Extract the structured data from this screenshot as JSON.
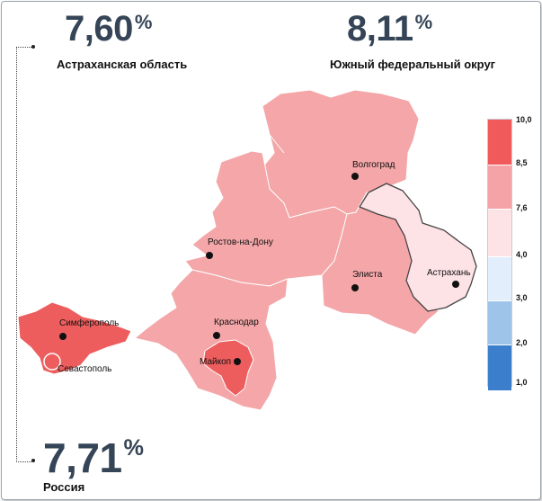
{
  "stats": {
    "region": {
      "value": "7,60",
      "unit": "%",
      "label": "Астраханская область"
    },
    "district": {
      "value": "8,11",
      "unit": "%",
      "label": "Южный федеральный округ"
    },
    "country": {
      "value": "7,71",
      "unit": "%",
      "label": "Россия"
    }
  },
  "cities": {
    "volgograd": "Волгоград",
    "rostov": "Ростов-на-Дону",
    "elista": "Элиста",
    "astrakhan": "Астрахань",
    "simferopol": "Симферополь",
    "sevastopol": "Севастополь",
    "krasnodar": "Краснодар",
    "maykop": "Майкоп"
  },
  "legend": {
    "ticks": [
      "10,0",
      "8,5",
      "7,6",
      "4,0",
      "3,0",
      "2,0",
      "1,0"
    ],
    "colors": [
      "#f05a5a",
      "#f5a3a6",
      "#fde3e6",
      "#e2eefb",
      "#9ec4ea",
      "#3b7fcc"
    ]
  },
  "colors": {
    "region_default": "#f4a6a8",
    "region_high": "#ee5d5d",
    "region_low": "#fde2e6",
    "text_dark": "#354557"
  }
}
